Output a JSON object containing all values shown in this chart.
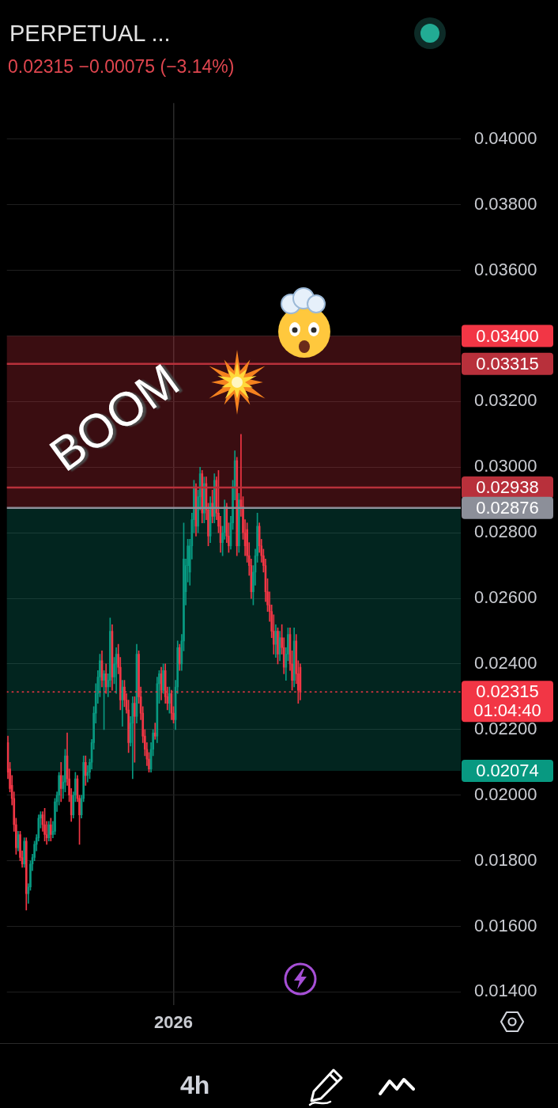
{
  "chart_data": {
    "type": "candlestick",
    "title": "PERPETUAL ...",
    "subtitle": "0.02315 −0.00075 (−3.14%)",
    "categories": [
      null,
      null,
      null,
      null,
      null,
      null,
      null,
      null,
      null,
      null,
      null,
      null,
      null,
      null,
      null,
      null,
      null,
      null,
      null,
      null,
      null,
      null,
      null,
      null,
      null,
      null,
      null,
      null,
      null,
      null,
      null,
      null,
      null,
      null,
      null,
      null,
      null,
      null,
      null,
      null,
      null,
      null,
      null,
      null,
      null,
      null,
      null,
      null,
      null,
      null,
      null,
      null,
      null,
      null,
      null,
      null,
      null,
      null,
      null,
      null,
      null,
      null,
      null,
      null,
      null,
      null,
      null,
      null,
      null,
      null,
      null,
      null,
      null,
      null,
      null,
      null,
      null,
      null,
      null,
      null,
      null,
      "2026",
      null,
      null,
      null,
      null,
      null,
      null,
      null,
      null,
      null,
      null,
      null,
      null,
      null,
      null,
      null,
      null,
      null,
      null,
      null,
      null,
      null,
      null,
      null,
      null,
      null,
      null,
      null,
      null,
      null,
      null,
      null,
      null,
      null,
      null,
      null,
      null,
      null,
      null,
      null,
      null,
      null,
      null,
      null,
      null,
      null,
      null,
      null,
      null,
      null,
      null,
      null,
      null,
      null,
      null,
      null,
      null,
      null,
      null,
      null,
      null,
      null,
      null,
      null,
      null,
      null,
      null,
      null,
      null,
      null,
      null,
      null,
      null,
      null,
      null,
      null,
      null,
      null,
      null,
      null,
      null,
      null,
      null,
      null,
      null,
      null,
      null,
      null,
      null,
      null,
      null,
      null,
      null,
      null,
      null,
      null,
      null,
      null,
      null,
      null,
      null,
      null,
      null,
      null,
      null,
      null,
      null,
      null,
      null,
      null,
      null,
      null,
      null,
      null,
      null,
      null,
      null,
      null,
      null,
      null,
      null,
      null,
      null,
      null,
      null,
      null,
      null,
      null,
      null,
      null,
      null,
      null,
      null,
      null,
      null,
      null,
      null,
      null,
      null,
      null,
      null
    ],
    "ohlc": [
      [
        0.0216,
        0.0218,
        0.0205,
        0.0207
      ],
      [
        0.0208,
        0.021,
        0.0201,
        0.0202
      ],
      [
        0.0203,
        0.0206,
        0.0197,
        0.0199
      ],
      [
        0.0199,
        0.0201,
        0.0189,
        0.0191
      ],
      [
        0.0191,
        0.0193,
        0.0182,
        0.0184
      ],
      [
        0.0184,
        0.0189,
        0.0183,
        0.0188
      ],
      [
        0.0188,
        0.0189,
        0.018,
        0.0181
      ],
      [
        0.0181,
        0.0183,
        0.0178,
        0.0179
      ],
      [
        0.0179,
        0.0187,
        0.0178,
        0.0186
      ],
      [
        0.0186,
        0.0187,
        0.0165,
        0.017
      ],
      [
        0.017,
        0.0173,
        0.0167,
        0.0172
      ],
      [
        0.0172,
        0.018,
        0.0171,
        0.0179
      ],
      [
        0.0179,
        0.0182,
        0.0177,
        0.0181
      ],
      [
        0.0181,
        0.0186,
        0.018,
        0.0185
      ],
      [
        0.0185,
        0.0188,
        0.0183,
        0.0187
      ],
      [
        0.0187,
        0.0194,
        0.0186,
        0.0193
      ],
      [
        0.0193,
        0.0195,
        0.019,
        0.0194
      ],
      [
        0.0194,
        0.0195,
        0.0189,
        0.0191
      ],
      [
        0.0191,
        0.0196,
        0.0186,
        0.0188
      ],
      [
        0.0188,
        0.0192,
        0.0185,
        0.0187
      ],
      [
        0.0187,
        0.0192,
        0.0186,
        0.0191
      ],
      [
        0.0191,
        0.0193,
        0.0186,
        0.0188
      ],
      [
        0.0188,
        0.0192,
        0.0187,
        0.0189
      ],
      [
        0.0189,
        0.0199,
        0.0188,
        0.0198
      ],
      [
        0.0198,
        0.0201,
        0.0195,
        0.02
      ],
      [
        0.02,
        0.0207,
        0.0197,
        0.0206
      ],
      [
        0.0206,
        0.021,
        0.0198,
        0.0202
      ],
      [
        0.0202,
        0.0206,
        0.0199,
        0.0204
      ],
      [
        0.0204,
        0.0214,
        0.0201,
        0.0212
      ],
      [
        0.0212,
        0.0219,
        0.0203,
        0.0205
      ],
      [
        0.0205,
        0.0208,
        0.0198,
        0.02
      ],
      [
        0.02,
        0.0202,
        0.0192,
        0.0194
      ],
      [
        0.0194,
        0.0201,
        0.0193,
        0.02
      ],
      [
        0.02,
        0.0207,
        0.0198,
        0.0205
      ],
      [
        0.0205,
        0.0206,
        0.0198,
        0.0199
      ],
      [
        0.0199,
        0.02,
        0.0185,
        0.0194
      ],
      [
        0.0194,
        0.02,
        0.0193,
        0.0199
      ],
      [
        0.0199,
        0.0212,
        0.0198,
        0.021
      ],
      [
        0.021,
        0.0212,
        0.0203,
        0.0206
      ],
      [
        0.0206,
        0.0209,
        0.0204,
        0.0207
      ],
      [
        0.0207,
        0.0211,
        0.0205,
        0.021
      ],
      [
        0.021,
        0.0217,
        0.0208,
        0.0216
      ],
      [
        0.0216,
        0.0227,
        0.0214,
        0.0225
      ],
      [
        0.0225,
        0.0234,
        0.0222,
        0.0231
      ],
      [
        0.0231,
        0.0238,
        0.0228,
        0.0236
      ],
      [
        0.0236,
        0.0243,
        0.023,
        0.0241
      ],
      [
        0.0241,
        0.0244,
        0.0233,
        0.0235
      ],
      [
        0.0235,
        0.0238,
        0.022,
        0.0237
      ],
      [
        0.0237,
        0.024,
        0.0231,
        0.0233
      ],
      [
        0.0233,
        0.0237,
        0.023,
        0.0235
      ],
      [
        0.0235,
        0.0254,
        0.0233,
        0.025
      ],
      [
        0.025,
        0.0252,
        0.0232,
        0.0236
      ],
      [
        0.0236,
        0.0242,
        0.0234,
        0.024
      ],
      [
        0.024,
        0.0245,
        0.0231,
        0.0243
      ],
      [
        0.0243,
        0.0246,
        0.0237,
        0.0239
      ],
      [
        0.0239,
        0.0242,
        0.0226,
        0.0229
      ],
      [
        0.0229,
        0.0235,
        0.0221,
        0.0233
      ],
      [
        0.0233,
        0.0235,
        0.0227,
        0.0229
      ],
      [
        0.0229,
        0.0231,
        0.0225,
        0.0226
      ],
      [
        0.0226,
        0.0229,
        0.0213,
        0.0216
      ],
      [
        0.0216,
        0.0224,
        0.0215,
        0.0222
      ],
      [
        0.0222,
        0.023,
        0.0205,
        0.0228
      ],
      [
        0.0228,
        0.023,
        0.021,
        0.0224
      ],
      [
        0.0224,
        0.0246,
        0.0222,
        0.0243
      ],
      [
        0.0243,
        0.0244,
        0.0228,
        0.023
      ],
      [
        0.023,
        0.0233,
        0.0223,
        0.0225
      ],
      [
        0.0225,
        0.0227,
        0.0216,
        0.0218
      ],
      [
        0.0218,
        0.022,
        0.0212,
        0.0214
      ],
      [
        0.0214,
        0.0216,
        0.0209,
        0.0211
      ],
      [
        0.0211,
        0.0213,
        0.0207,
        0.0208
      ],
      [
        0.0208,
        0.0216,
        0.0207,
        0.0214
      ],
      [
        0.0214,
        0.022,
        0.0212,
        0.0219
      ],
      [
        0.0219,
        0.0222,
        0.0217,
        0.0218
      ],
      [
        0.0218,
        0.0236,
        0.0216,
        0.0234
      ],
      [
        0.0234,
        0.0238,
        0.0228,
        0.0237
      ],
      [
        0.0237,
        0.0239,
        0.0229,
        0.0232
      ],
      [
        0.0232,
        0.024,
        0.0231,
        0.0238
      ],
      [
        0.0238,
        0.024,
        0.0228,
        0.023
      ],
      [
        0.023,
        0.0233,
        0.0226,
        0.0228
      ],
      [
        0.0228,
        0.0233,
        0.0225,
        0.0231
      ],
      [
        0.0231,
        0.0232,
        0.0223,
        0.0225
      ],
      [
        0.0225,
        0.0227,
        0.0222,
        0.0223
      ],
      [
        0.0223,
        0.0235,
        0.022,
        0.0233
      ],
      [
        0.0233,
        0.0247,
        0.0231,
        0.0245
      ],
      [
        0.0245,
        0.0246,
        0.0238,
        0.024
      ],
      [
        0.024,
        0.0249,
        0.0238,
        0.0247
      ],
      [
        0.0247,
        0.0283,
        0.0244,
        0.0272
      ],
      [
        0.0262,
        0.0272,
        0.0258,
        0.027
      ],
      [
        0.027,
        0.0278,
        0.0265,
        0.0276
      ],
      [
        0.0268,
        0.0278,
        0.0264,
        0.0276
      ],
      [
        0.0276,
        0.0286,
        0.0272,
        0.0284
      ],
      [
        0.0284,
        0.0296,
        0.028,
        0.0294
      ],
      [
        0.0294,
        0.0295,
        0.0279,
        0.0282
      ],
      [
        0.0282,
        0.0293,
        0.028,
        0.0291
      ],
      [
        0.0291,
        0.03,
        0.0287,
        0.0298
      ],
      [
        0.0298,
        0.0299,
        0.0283,
        0.0286
      ],
      [
        0.0286,
        0.0297,
        0.0283,
        0.0295
      ],
      [
        0.0295,
        0.0297,
        0.0284,
        0.0287
      ],
      [
        0.0287,
        0.0289,
        0.0276,
        0.0279
      ],
      [
        0.0279,
        0.0291,
        0.0277,
        0.0289
      ],
      [
        0.0289,
        0.0293,
        0.0283,
        0.0285
      ],
      [
        0.0285,
        0.0298,
        0.0283,
        0.0296
      ],
      [
        0.0296,
        0.0297,
        0.0284,
        0.0286
      ],
      [
        0.0286,
        0.0299,
        0.028,
        0.0282
      ],
      [
        0.0282,
        0.0285,
        0.0274,
        0.0277
      ],
      [
        0.0277,
        0.0282,
        0.0273,
        0.028
      ],
      [
        0.028,
        0.029,
        0.0278,
        0.0288
      ],
      [
        0.0288,
        0.0289,
        0.0277,
        0.0279
      ],
      [
        0.0279,
        0.0283,
        0.0274,
        0.0276
      ],
      [
        0.0276,
        0.0285,
        0.0275,
        0.0283
      ],
      [
        0.0283,
        0.0296,
        0.0281,
        0.0294
      ],
      [
        0.0294,
        0.0305,
        0.029,
        0.0302
      ],
      [
        0.0302,
        0.0303,
        0.0273,
        0.0276
      ],
      [
        0.0276,
        0.0292,
        0.0274,
        0.029
      ],
      [
        0.029,
        0.031,
        0.0285,
        0.0288
      ],
      [
        0.0288,
        0.0291,
        0.0278,
        0.028
      ],
      [
        0.028,
        0.0284,
        0.0273,
        0.0276
      ],
      [
        0.0281,
        0.0283,
        0.0271,
        0.0273
      ],
      [
        0.0273,
        0.0277,
        0.0267,
        0.027
      ],
      [
        0.027,
        0.0272,
        0.026,
        0.0262
      ],
      [
        0.0262,
        0.027,
        0.0258,
        0.0268
      ],
      [
        0.0268,
        0.0275,
        0.0264,
        0.0273
      ],
      [
        0.0273,
        0.0286,
        0.0271,
        0.0282
      ],
      [
        0.0282,
        0.0283,
        0.0274,
        0.0276
      ],
      [
        0.0276,
        0.0278,
        0.0271,
        0.0273
      ],
      [
        0.0273,
        0.0275,
        0.0268,
        0.027
      ],
      [
        0.027,
        0.0272,
        0.0259,
        0.0262
      ],
      [
        0.0262,
        0.0266,
        0.0256,
        0.0258
      ],
      [
        0.0258,
        0.0262,
        0.0253,
        0.0256
      ],
      [
        0.0256,
        0.0258,
        0.0248,
        0.025
      ],
      [
        0.025,
        0.0255,
        0.0243,
        0.0246
      ],
      [
        0.0246,
        0.0252,
        0.0242,
        0.025
      ],
      [
        0.025,
        0.0251,
        0.024,
        0.0243
      ],
      [
        0.0243,
        0.025,
        0.0241,
        0.0248
      ],
      [
        0.0248,
        0.0252,
        0.0243,
        0.0245
      ],
      [
        0.0245,
        0.0248,
        0.0237,
        0.0239
      ],
      [
        0.0239,
        0.0245,
        0.0235,
        0.0243
      ],
      [
        0.0243,
        0.0251,
        0.0241,
        0.0249
      ],
      [
        0.0249,
        0.0251,
        0.0238,
        0.024
      ],
      [
        0.024,
        0.0244,
        0.0232,
        0.0235
      ],
      [
        0.0235,
        0.0251,
        0.0233,
        0.0247
      ],
      [
        0.0247,
        0.0249,
        0.0234,
        0.0237
      ],
      [
        0.0237,
        0.0241,
        0.0228,
        0.0232
      ],
      [
        0.0239,
        0.024,
        0.0229,
        0.02315
      ],
      null,
      null,
      null,
      null,
      null,
      null,
      null,
      null,
      null,
      null,
      null,
      null,
      null,
      null,
      null,
      null,
      null,
      null,
      null,
      null,
      null,
      null,
      null,
      null,
      null,
      null,
      null,
      null,
      null,
      null,
      null,
      null,
      null,
      null,
      null,
      null,
      null,
      null,
      null,
      null,
      null,
      null,
      null,
      null,
      null,
      null,
      null,
      null,
      null,
      null,
      null,
      null,
      null,
      null,
      null,
      null,
      null,
      null,
      null,
      null,
      null,
      null,
      null,
      null,
      null,
      null,
      null,
      null,
      null,
      null,
      null,
      null,
      null,
      null,
      null,
      null,
      null,
      null
    ],
    "colors": [
      "#f23645",
      "#f23645",
      "#f23645",
      "#f23645",
      "#f23645",
      "#089981",
      "#f23645",
      "#f23645",
      "#089981",
      "#f23645",
      "#089981",
      "#089981",
      "#089981",
      "#089981",
      "#089981",
      "#089981",
      "#089981",
      "#f23645",
      "#f23645",
      "#f23645",
      "#089981",
      "#f23645",
      "#089981",
      "#089981",
      "#089981",
      "#089981",
      "#f23645",
      "#089981",
      "#089981",
      "#f23645",
      "#f23645",
      "#f23645",
      "#089981",
      "#089981",
      "#f23645",
      "#f23645",
      "#089981",
      "#089981",
      "#f23645",
      "#089981",
      "#089981",
      "#089981",
      "#089981",
      "#089981",
      "#089981",
      "#089981",
      "#f23645",
      "#089981",
      "#f23645",
      "#089981",
      "#089981",
      "#f23645",
      "#089981",
      "#089981",
      "#f23645",
      "#f23645",
      "#089981",
      "#f23645",
      "#f23645",
      "#f23645",
      "#089981",
      "#089981",
      "#f23645",
      "#089981",
      "#f23645",
      "#f23645",
      "#f23645",
      "#f23645",
      "#f23645",
      "#f23645",
      "#089981",
      "#089981",
      "#f23645",
      "#089981",
      "#089981",
      "#f23645",
      "#089981",
      "#f23645",
      "#f23645",
      "#089981",
      "#f23645",
      "#f23645",
      "#089981",
      "#089981",
      "#f23645",
      "#089981",
      "#089981",
      "#089981",
      "#089981",
      "#089981",
      "#089981",
      "#089981",
      "#f23645",
      "#089981",
      "#089981",
      "#f23645",
      "#089981",
      "#f23645",
      "#f23645",
      "#089981",
      "#f23645",
      "#089981",
      "#f23645",
      "#f23645",
      "#f23645",
      "#089981",
      "#089981",
      "#f23645",
      "#f23645",
      "#089981",
      "#089981",
      "#089981",
      "#f23645",
      "#089981",
      "#f23645",
      "#f23645",
      "#f23645",
      "#f23645",
      "#f23645",
      "#f23645",
      "#089981",
      "#089981",
      "#089981",
      "#f23645",
      "#f23645",
      "#f23645",
      "#f23645",
      "#f23645",
      "#f23645",
      "#f23645",
      "#f23645",
      "#089981",
      "#f23645",
      "#089981",
      "#f23645",
      "#f23645",
      "#089981",
      "#089981",
      "#f23645",
      "#f23645",
      "#089981",
      "#f23645",
      "#f23645",
      "#f23645",
      null,
      null,
      null,
      null,
      null,
      null,
      null,
      null,
      null,
      null,
      null,
      null,
      null,
      null,
      null,
      null,
      null,
      null,
      null,
      null,
      null,
      null,
      null,
      null,
      null,
      null,
      null,
      null,
      null,
      null,
      null,
      null,
      null,
      null,
      null,
      null,
      null,
      null,
      null,
      null,
      null,
      null,
      null,
      null,
      null,
      null,
      null,
      null,
      null,
      null,
      null,
      null,
      null,
      null,
      null,
      null,
      null,
      null,
      null,
      null,
      null,
      null,
      null,
      null,
      null,
      null,
      null,
      null,
      null,
      null,
      null,
      null,
      null,
      null,
      null,
      null,
      null,
      null
    ],
    "ylim": [
      0.0136,
      0.0411
    ],
    "yticks": [
      {
        "value": 0.014,
        "label": "0.01400"
      },
      {
        "value": 0.016,
        "label": "0.01600"
      },
      {
        "value": 0.018,
        "label": "0.01800"
      },
      {
        "value": 0.02,
        "label": "0.02000"
      },
      {
        "value": 0.022,
        "label": "0.02200"
      },
      {
        "value": 0.024,
        "label": "0.02400"
      },
      {
        "value": 0.026,
        "label": "0.02600"
      },
      {
        "value": 0.028,
        "label": "0.02800"
      },
      {
        "value": 0.03,
        "label": "0.03000"
      },
      {
        "value": 0.032,
        "label": "0.03200"
      },
      {
        "value": 0.034,
        "label": null
      },
      {
        "value": 0.036,
        "label": "0.03600"
      },
      {
        "value": 0.038,
        "label": "0.03800"
      },
      {
        "value": 0.04,
        "label": "0.04000"
      }
    ],
    "grid": true,
    "bands": [
      {
        "axis": "y",
        "from": 0.02876,
        "to": 0.034,
        "label": "0.03400",
        "color": "#f23645"
      },
      {
        "axis": "y",
        "from": 0.02876,
        "to": 0.02074,
        "label": "0.02074",
        "color": "#089981"
      }
    ],
    "ref_lines": [
      {
        "axis": "y",
        "value": 0.03315,
        "label": "0.03315",
        "color": "#b8303b"
      },
      {
        "axis": "y",
        "value": 0.02938,
        "label": "0.02938",
        "color": "#b8303b"
      },
      {
        "axis": "y",
        "value": 0.02876,
        "label": "0.02876",
        "color": "#8c8f99"
      },
      {
        "axis": "y",
        "value": 0.02315,
        "label": "0.02315",
        "color": "#f23645",
        "line_style": "dotted"
      }
    ],
    "annotations": [
      "BOOM",
      "01:04:40",
      "4h"
    ]
  }
}
